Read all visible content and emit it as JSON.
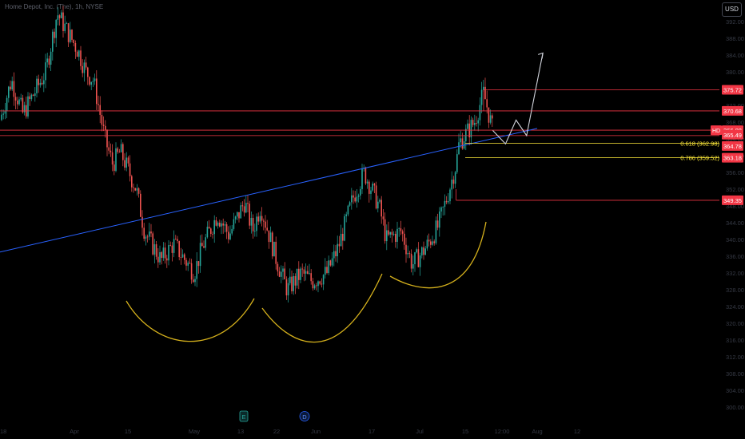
{
  "header": {
    "symbol_title": "Home Depot, Inc. (The), 1h, NYSE",
    "currency_button": "USD"
  },
  "colors": {
    "background": "#000000",
    "candle_up": "#26a69a",
    "candle_down": "#ef5350",
    "resistance_line": "#f23645",
    "trendline": "#2962ff",
    "fib_line": "#ffeb3b",
    "arc": "#d4b01c",
    "projection_arrow": "#d1d4dc",
    "axis_text": "#363a45"
  },
  "chart_data": {
    "type": "candlestick",
    "title": "Home Depot, Inc. (The), 1h, NYSE",
    "y_axis": {
      "ticks": [
        392.0,
        388.0,
        384.0,
        380.0,
        376.0,
        372.0,
        368.0,
        364.0,
        360.0,
        356.0,
        352.0,
        348.0,
        344.0,
        340.0,
        336.0,
        332.0,
        328.0,
        324.0,
        320.0,
        316.0,
        312.0,
        308.0,
        304.0,
        300.0
      ],
      "range": [
        297,
        396
      ]
    },
    "x_axis": {
      "ticks": [
        "18",
        "Apr",
        "15",
        "May",
        "13",
        "22",
        "Jun",
        "17",
        "Jul",
        "15",
        "12:00",
        "Aug",
        "12"
      ]
    },
    "price_path": [
      {
        "t": "Mar 18",
        "price": 368.5
      },
      {
        "t": "Mar 20",
        "price": 378
      },
      {
        "t": "Mar 22",
        "price": 370
      },
      {
        "t": "Mar 26",
        "price": 380
      },
      {
        "t": "Mar 28",
        "price": 394
      },
      {
        "t": "Apr 1",
        "price": 385
      },
      {
        "t": "Apr 3",
        "price": 380
      },
      {
        "t": "Apr 5",
        "price": 378
      },
      {
        "t": "Apr 8",
        "price": 364
      },
      {
        "t": "Apr 10",
        "price": 358
      },
      {
        "t": "Apr 12",
        "price": 361
      },
      {
        "t": "Apr 16",
        "price": 352
      },
      {
        "t": "Apr 18",
        "price": 342
      },
      {
        "t": "Apr 22",
        "price": 335
      },
      {
        "t": "Apr 25",
        "price": 339
      },
      {
        "t": "Apr 30",
        "price": 332
      },
      {
        "t": "May 2",
        "price": 338
      },
      {
        "t": "May 6",
        "price": 346
      },
      {
        "t": "May 9",
        "price": 341
      },
      {
        "t": "May 13",
        "price": 349
      },
      {
        "t": "May 15",
        "price": 342
      },
      {
        "t": "May 17",
        "price": 348
      },
      {
        "t": "May 21",
        "price": 335
      },
      {
        "t": "May 24",
        "price": 328
      },
      {
        "t": "May 28",
        "price": 332
      },
      {
        "t": "May 31",
        "price": 330
      },
      {
        "t": "Jun 4",
        "price": 332
      },
      {
        "t": "Jun 7",
        "price": 338
      },
      {
        "t": "Jun 11",
        "price": 350
      },
      {
        "t": "Jun 14",
        "price": 356
      },
      {
        "t": "Jun 18",
        "price": 348
      },
      {
        "t": "Jun 20",
        "price": 340
      },
      {
        "t": "Jun 24",
        "price": 342
      },
      {
        "t": "Jun 27",
        "price": 334
      },
      {
        "t": "Jul 1",
        "price": 338
      },
      {
        "t": "Jul 5",
        "price": 343
      },
      {
        "t": "Jul 8",
        "price": 350
      },
      {
        "t": "Jul 11",
        "price": 358
      },
      {
        "t": "Jul 12",
        "price": 363
      },
      {
        "t": "Jul 15",
        "price": 368
      },
      {
        "t": "Jul 16",
        "price": 375
      },
      {
        "t": "Jul 17",
        "price": 366
      }
    ],
    "horizontal_levels": [
      {
        "price": 375.72,
        "label": "375.72",
        "from": "Jul 16"
      },
      {
        "price": 370.68,
        "label": "370.68",
        "from": "Mar 18"
      },
      {
        "price": 366.08,
        "label": "366.08",
        "from": "Mar 18"
      },
      {
        "price": 364.78,
        "label": "364.78",
        "from": "Mar 18"
      },
      {
        "price": 349.35,
        "label": "349.35",
        "from": "Jul 11"
      }
    ],
    "fib_levels": [
      {
        "ratio": "0.618",
        "price": 362.98,
        "label": "0.618 (362.98)"
      },
      {
        "ratio": "0.786",
        "price": 359.52,
        "label": "0.786 (359.52)"
      }
    ],
    "price_labels": [
      {
        "text": "HD",
        "price": 366.08
      },
      {
        "text": "366.08",
        "price": 366.08
      },
      {
        "text": "365.49",
        "price": 365.0
      },
      {
        "text": "364.78",
        "price": 362.3
      },
      {
        "text": "363.18",
        "price": 359.5
      }
    ],
    "trendline": {
      "from": {
        "t": "Mar 18",
        "price": 337
      },
      "to": {
        "t": "Jul 28",
        "price": 366.5
      }
    },
    "projection_path": [
      {
        "t": "Jul 17",
        "price": 366
      },
      {
        "t": "Jul 19",
        "price": 362.8
      },
      {
        "t": "Jul 22",
        "price": 368.5
      },
      {
        "t": "Jul 25",
        "price": 364.8
      },
      {
        "t": "Jul 30",
        "price": 384.5
      }
    ],
    "arcs": [
      "left-shoulder",
      "head",
      "right-shoulder"
    ],
    "event_markers": [
      "E",
      "D"
    ]
  }
}
